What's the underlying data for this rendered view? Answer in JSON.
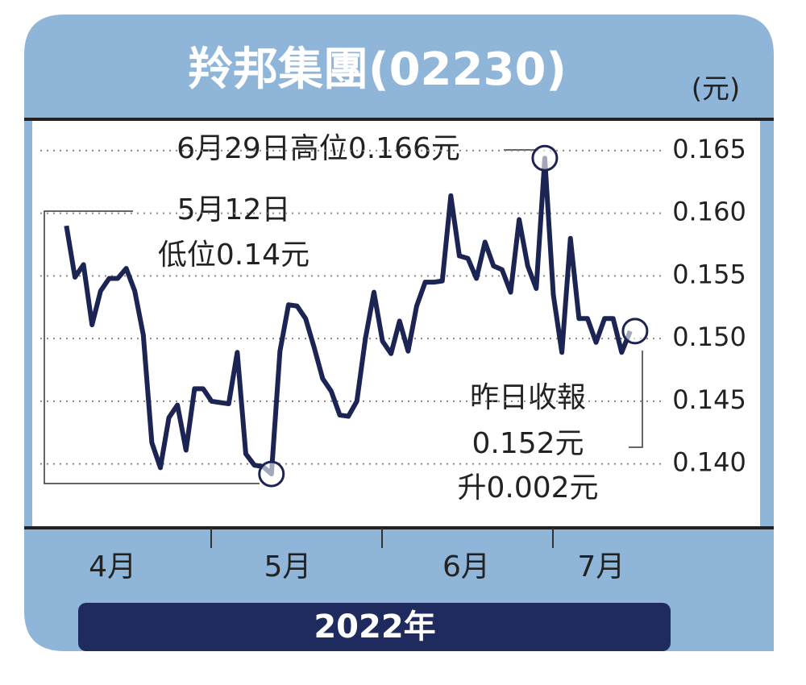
{
  "chart_data": {
    "type": "line",
    "title": "羚邦集團(02230)",
    "unit": "(元)",
    "x_label": "2022年",
    "x": [
      0,
      1,
      2,
      3,
      4,
      5,
      6,
      7,
      8,
      9,
      10,
      11,
      12,
      13,
      14,
      15,
      16,
      17,
      18,
      19,
      20,
      21,
      22,
      23,
      24,
      25,
      26,
      27,
      28,
      29,
      30,
      31,
      32,
      33,
      34,
      35,
      36,
      37,
      38,
      39,
      40,
      41,
      42,
      43,
      44,
      45,
      46,
      47,
      48,
      49,
      50,
      51,
      52,
      53,
      54,
      55,
      56,
      57,
      58,
      59,
      60,
      61,
      62,
      63,
      64,
      65,
      66
    ],
    "values": [
      0.159,
      0.1549,
      0.1559,
      0.1511,
      0.1538,
      0.1548,
      0.1548,
      0.1556,
      0.1538,
      0.1503,
      0.1417,
      0.1397,
      0.1437,
      0.1447,
      0.1411,
      0.146,
      0.146,
      0.145,
      0.1449,
      0.1448,
      0.1489,
      0.1408,
      0.1399,
      0.1398,
      0.1392,
      0.149,
      0.1527,
      0.1526,
      0.1516,
      0.1493,
      0.1468,
      0.1458,
      0.1439,
      0.1438,
      0.145,
      0.15,
      0.1537,
      0.1498,
      0.1488,
      0.1514,
      0.149,
      0.1526,
      0.1545,
      0.1545,
      0.1546,
      0.1614,
      0.1566,
      0.1564,
      0.1548,
      0.1577,
      0.1558,
      0.1555,
      0.1537,
      0.1595,
      0.1558,
      0.154,
      0.1644,
      0.1535,
      0.1489,
      0.158,
      0.1516,
      0.1516,
      0.1497,
      0.1516,
      0.1516,
      0.1489,
      0.1506
    ],
    "color": "#1b2452",
    "xlim": [
      -4,
      81.2
    ],
    "xticks": [
      {
        "value": 5.4,
        "label": "4月"
      },
      {
        "value": 25.9,
        "label": "5月"
      },
      {
        "value": 46.8,
        "label": "6月"
      },
      {
        "value": 62.6,
        "label": "7月"
      }
    ],
    "ylim": [
      0.1349,
      0.1675
    ],
    "yticks": [
      {
        "value": 0.14,
        "label": "0.140"
      },
      0.145,
      {
        "value": 0.15,
        "label": "0.150"
      },
      0.155,
      {
        "value": 0.16,
        "label": "0.160"
      },
      0.165
    ],
    "grid": true,
    "annotations": [
      [
        "6月29日高位0.166元"
      ],
      [
        "5月12日",
        "低位0.14元"
      ],
      [
        "昨日收報",
        "0.152元",
        "升0.002元"
      ]
    ]
  }
}
